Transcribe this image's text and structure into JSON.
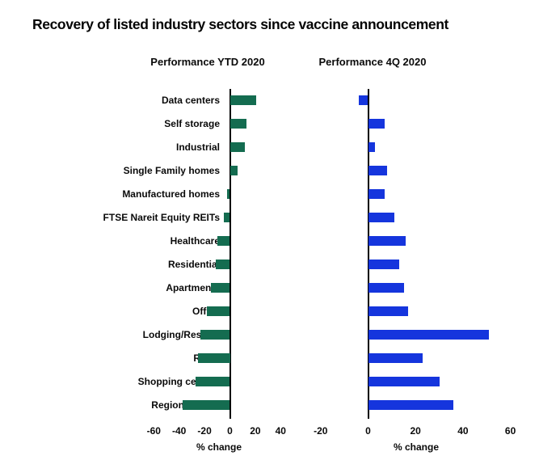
{
  "title": "Recovery of listed industry sectors since vaccine announcement",
  "chart_data": {
    "type": "bar",
    "orientation": "horizontal",
    "grid": false,
    "legend_position": "none",
    "categories": [
      "Data centers",
      "Self storage",
      "Industrial",
      "Single Family homes",
      "Manufactured homes",
      "FTSE Nareit Equity REITs",
      "Healthcare",
      "Residential",
      "Apartments",
      "Office",
      "Lodging/Resorts",
      "Retail",
      "Shopping centers",
      "Regional malls"
    ],
    "series": [
      {
        "name": "Performance YTD 2020",
        "values": [
          21,
          13,
          12,
          6,
          -2,
          -5,
          -10,
          -11,
          -15,
          -18,
          -23,
          -25,
          -27,
          -37
        ],
        "color": "#146c50",
        "xlabel": "% change",
        "xticks": [
          -60,
          -40,
          -20,
          0,
          20,
          40
        ],
        "xlim": [
          -60,
          50
        ]
      },
      {
        "name": "Performance 4Q 2020",
        "values": [
          -4,
          7,
          3,
          8,
          7,
          11,
          16,
          13,
          15,
          17,
          51,
          23,
          30,
          36
        ],
        "color": "#1535dd",
        "xlabel": "% change",
        "xticks": [
          -20,
          0,
          20,
          40,
          60
        ],
        "xlim": [
          -20,
          60
        ]
      }
    ]
  }
}
